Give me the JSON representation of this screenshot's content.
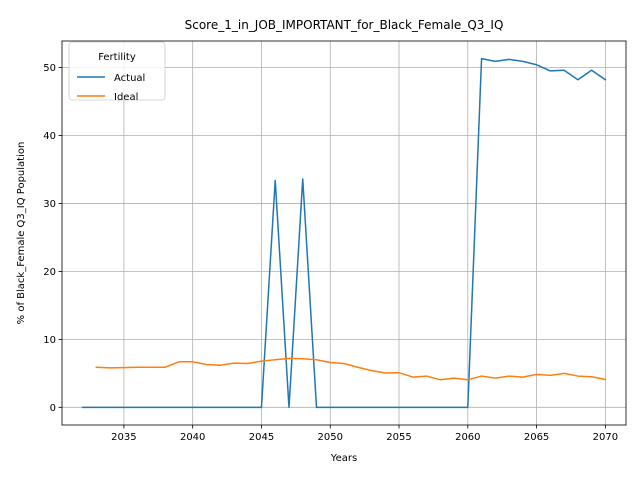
{
  "chart_data": {
    "type": "line",
    "title": "Score_1_in_JOB_IMPORTANT_for_Black_Female_Q3_IQ",
    "xlabel": "Years",
    "ylabel": "% of Black_Female Q3_IQ Population",
    "xlim": [
      2030.5,
      2071.5
    ],
    "ylim": [
      -2.6,
      53.9
    ],
    "xticks": [
      2035,
      2040,
      2045,
      2050,
      2055,
      2060,
      2065,
      2070
    ],
    "yticks": [
      0,
      10,
      20,
      30,
      40,
      50
    ],
    "grid": true,
    "legend": {
      "title": "Fertility",
      "position": "top-left"
    },
    "colors": {
      "Actual": "#1f77b4",
      "Ideal": "#ff7f0e"
    },
    "series": [
      {
        "name": "Actual",
        "x": [
          2032,
          2033,
          2034,
          2035,
          2036,
          2037,
          2038,
          2039,
          2040,
          2041,
          2042,
          2043,
          2044,
          2045,
          2046,
          2047,
          2048,
          2049,
          2050,
          2051,
          2052,
          2053,
          2054,
          2055,
          2056,
          2057,
          2058,
          2059,
          2060,
          2061,
          2062,
          2063,
          2064,
          2065,
          2066,
          2067,
          2068,
          2069,
          2070
        ],
        "values": [
          0,
          0,
          0,
          0,
          0,
          0,
          0,
          0,
          0,
          0,
          0,
          0,
          0,
          0,
          33.4,
          0,
          33.6,
          0,
          0,
          0,
          0,
          0,
          0,
          0,
          0,
          0,
          0,
          0,
          0,
          51.3,
          50.9,
          51.2,
          50.9,
          50.4,
          49.5,
          49.6,
          48.2,
          49.6,
          48.2
        ]
      },
      {
        "name": "Ideal",
        "x": [
          2033,
          2034,
          2035,
          2036,
          2037,
          2038,
          2039,
          2040,
          2041,
          2042,
          2043,
          2044,
          2045,
          2046,
          2047,
          2048,
          2049,
          2050,
          2051,
          2052,
          2053,
          2054,
          2055,
          2056,
          2057,
          2058,
          2059,
          2060,
          2061,
          2062,
          2063,
          2064,
          2065,
          2066,
          2067,
          2068,
          2069,
          2070
        ],
        "values": [
          5.9,
          5.8,
          5.85,
          5.9,
          5.9,
          5.9,
          6.7,
          6.7,
          6.3,
          6.2,
          6.5,
          6.45,
          6.8,
          7.0,
          7.2,
          7.15,
          7.0,
          6.6,
          6.45,
          5.9,
          5.4,
          5.05,
          5.1,
          4.45,
          4.6,
          4.05,
          4.3,
          4.05,
          4.6,
          4.3,
          4.6,
          4.45,
          4.85,
          4.7,
          5.0,
          4.6,
          4.5,
          4.1
        ]
      }
    ]
  }
}
